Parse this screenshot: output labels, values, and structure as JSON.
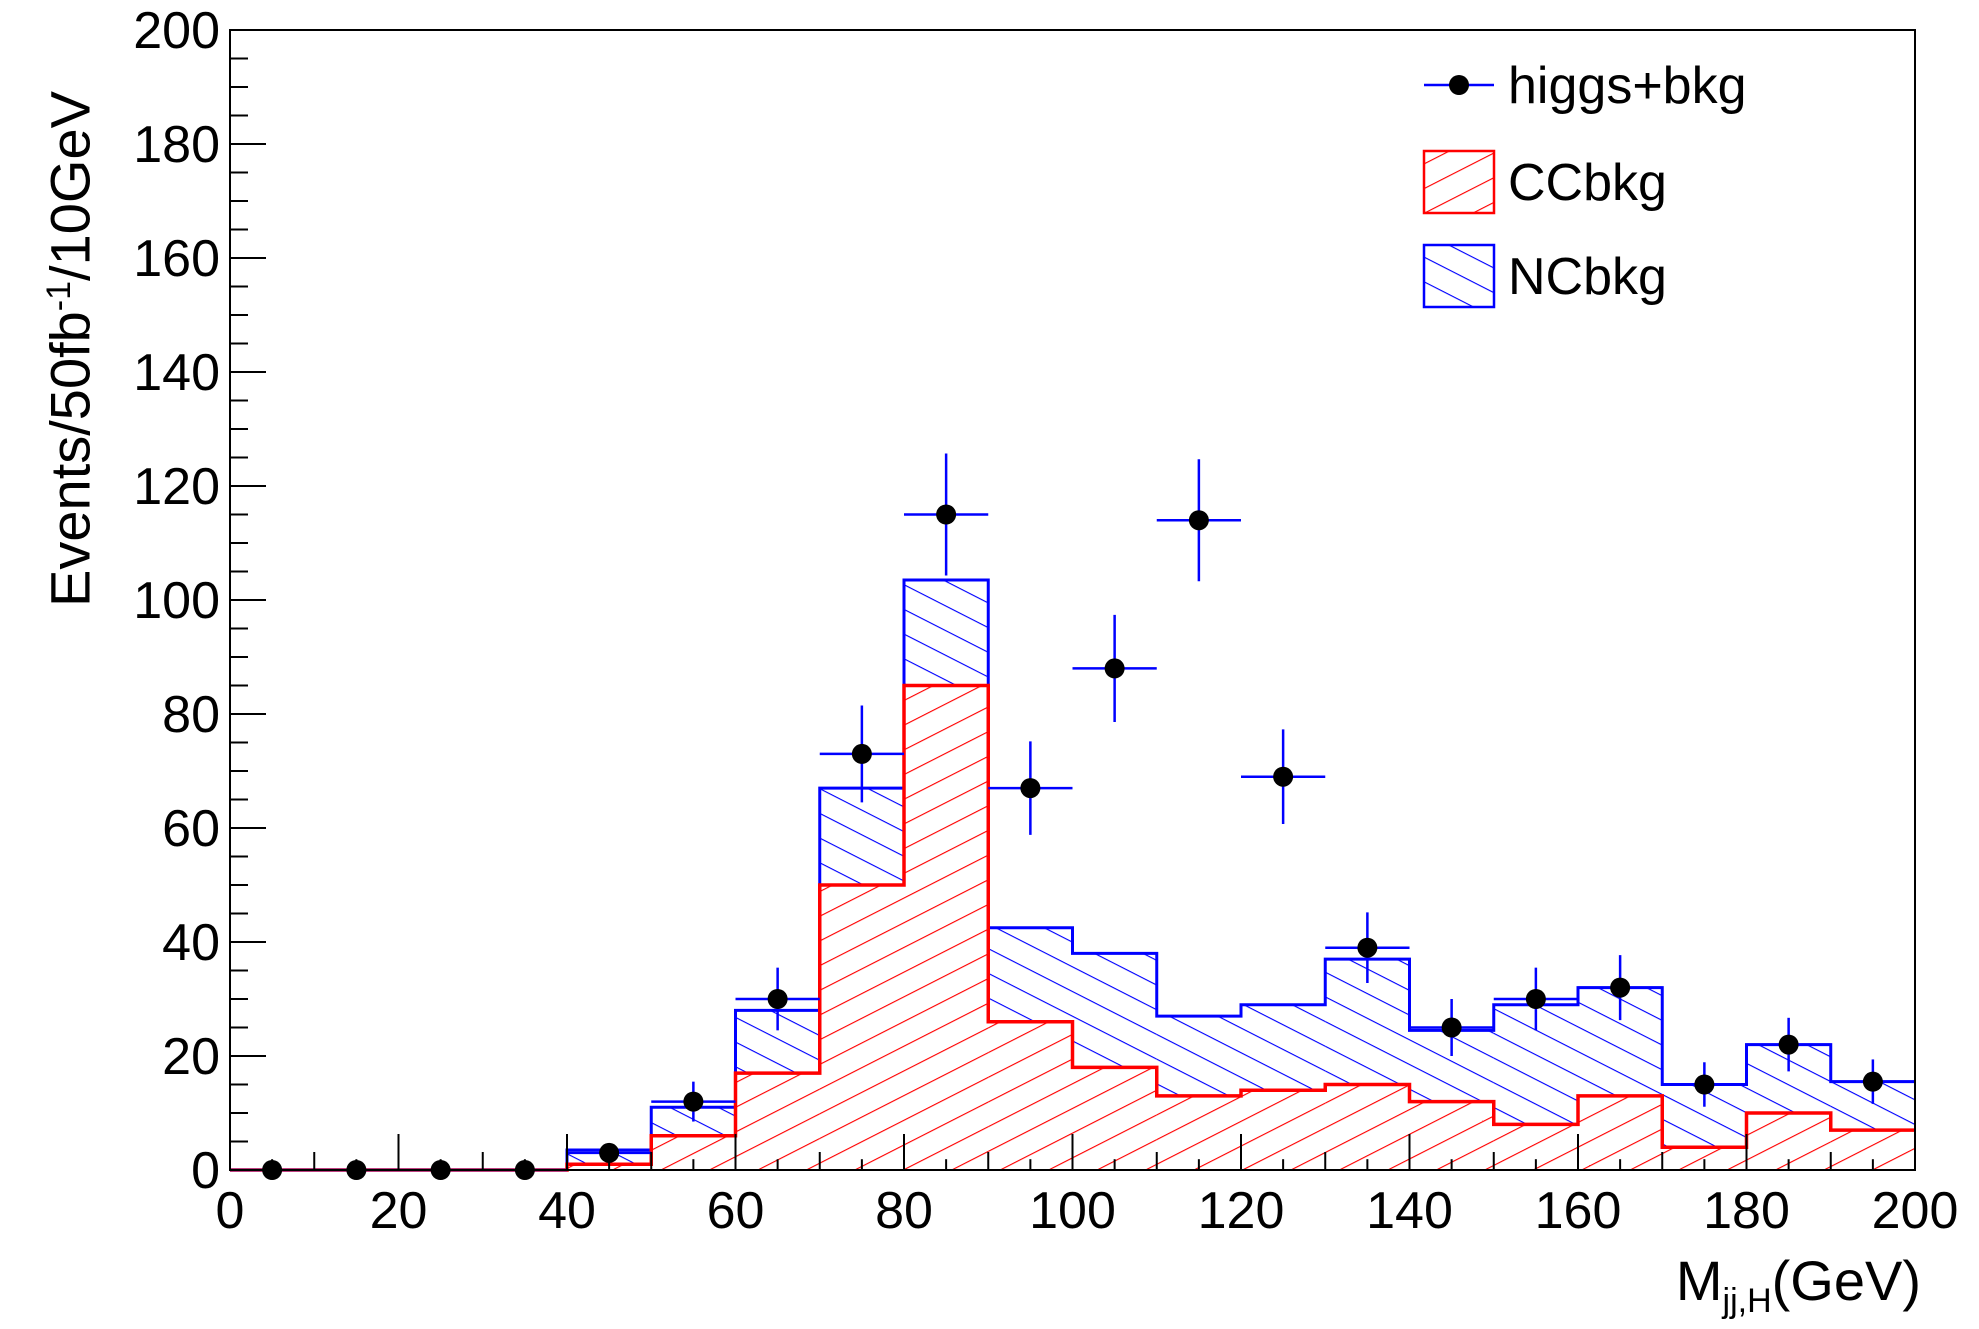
{
  "chart_data": {
    "type": "bar",
    "xlabel": {
      "main": "M",
      "sub": "jj,H",
      "tail": "(GeV)"
    },
    "ylabel": {
      "pre": "Events/50fb",
      "sup": "-1",
      "post": "/10GeV"
    },
    "xlim": [
      0,
      200
    ],
    "ylim": [
      0,
      200
    ],
    "xticks": [
      "0",
      "20",
      "40",
      "60",
      "80",
      "100",
      "120",
      "140",
      "160",
      "180",
      "200"
    ],
    "yticks": [
      "0",
      "20",
      "40",
      "60",
      "80",
      "100",
      "120",
      "140",
      "160",
      "180",
      "200"
    ],
    "bin_edges": [
      0,
      10,
      20,
      30,
      40,
      50,
      60,
      70,
      80,
      90,
      100,
      110,
      120,
      130,
      140,
      150,
      160,
      170,
      180,
      190,
      200
    ],
    "legend_position": "top-right",
    "legend": [
      "higgs+bkg",
      "CCbkg",
      "NCbkg"
    ],
    "series": [
      {
        "name": "CCbkg",
        "style": "hatched-histogram",
        "color": "#ff0000",
        "values": [
          0,
          0,
          0,
          0,
          1,
          6,
          17,
          50,
          85,
          26,
          18,
          13,
          14,
          15,
          12,
          8,
          13,
          4,
          10,
          7
        ]
      },
      {
        "name": "NCbkg",
        "style": "stacked-hatched-histogram",
        "color": "#0000ff",
        "values": [
          0,
          0,
          0,
          0,
          2.5,
          5,
          11,
          17,
          18.5,
          16.5,
          20,
          14,
          15,
          22,
          12.5,
          21,
          19,
          11,
          12,
          8.5
        ],
        "stacked_total": [
          0,
          0,
          0,
          0,
          3.5,
          11,
          28,
          67,
          103.5,
          42.5,
          38,
          27,
          29,
          37,
          24.5,
          29,
          32,
          15,
          22,
          15.5
        ]
      },
      {
        "name": "higgs+bkg",
        "style": "points-with-errors",
        "color": "#000000",
        "error_color": "#0000ff",
        "x": [
          5,
          15,
          25,
          35,
          45,
          55,
          65,
          75,
          85,
          95,
          105,
          115,
          125,
          135,
          145,
          155,
          165,
          175,
          185,
          195
        ],
        "values": [
          0,
          0,
          0,
          0,
          3,
          12,
          30,
          73,
          115,
          67,
          88,
          114,
          69,
          39,
          25,
          30,
          32,
          15,
          22,
          15.5
        ],
        "errors": [
          0,
          0,
          0,
          0,
          1.7,
          3.5,
          5.5,
          8.5,
          10.7,
          8.2,
          9.4,
          10.7,
          8.3,
          6.2,
          5,
          5.5,
          5.7,
          3.9,
          4.7,
          3.9
        ]
      }
    ],
    "colors": {
      "cc": "#ff0000",
      "nc": "#0000ff",
      "points": "#000000",
      "axis": "#000000"
    }
  }
}
